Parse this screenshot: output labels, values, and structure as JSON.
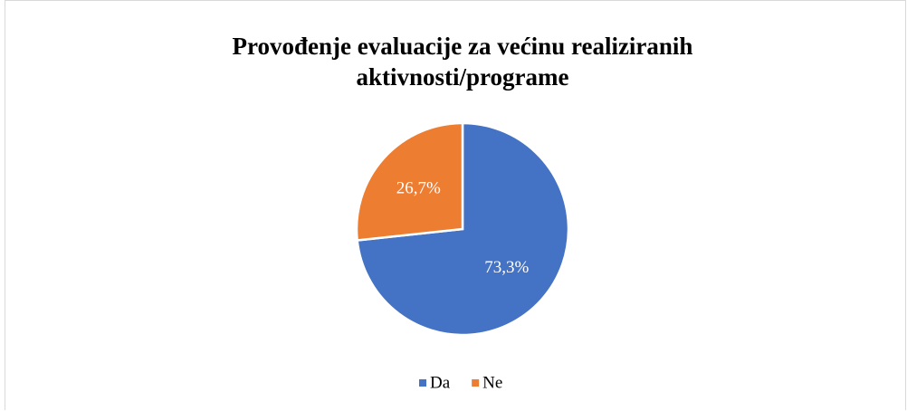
{
  "chart_data": {
    "type": "pie",
    "title": "Provođenje evaluacije za većinu realiziranih aktivnosti/programe",
    "categories": [
      "Da",
      "Ne"
    ],
    "values": [
      73.3,
      26.7
    ],
    "value_labels": [
      "73,3%",
      "26,7%"
    ],
    "colors": [
      "#4472c4",
      "#ed7d31"
    ],
    "legend": "bottom"
  }
}
